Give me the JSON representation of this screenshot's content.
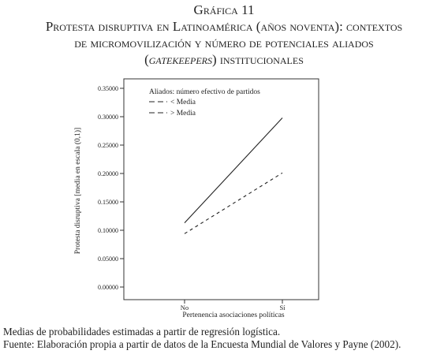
{
  "figure": {
    "number": "Gráfica 11",
    "title_line1": "Protesta disruptiva en Latinoamérica (años noventa): contextos",
    "title_line2": "de micromovilización y número de potenciales aliados",
    "title_line3_open": "(",
    "title_line3_italic": "gatekeepers",
    "title_line3_rest": ") institucionales"
  },
  "notes": {
    "line1": "Medias de probabilidades estimadas a partir de regresión logística.",
    "line2": "Fuente: Elaboración propia a partir de datos de la Encuesta Mundial de Valores y Payne (2002)."
  },
  "chart_data": {
    "type": "line",
    "categories": [
      "No",
      "Sí"
    ],
    "series": [
      {
        "name": "< Media",
        "values": [
          0.113,
          0.298
        ],
        "dash": "solid"
      },
      {
        "name": "> Media",
        "values": [
          0.094,
          0.201
        ],
        "dash": "dashed"
      }
    ],
    "ylabel": "Protesta disruptiva [media en escala (0,1)]",
    "xlabel": "Pertenencia asociaciones políticas",
    "ylim": [
      0.0,
      0.35
    ],
    "yticks": [
      "0.00000",
      "0.05000",
      "0.10000",
      "0.15000",
      "0.20000",
      "0.25000",
      "0.30000",
      "0.35000"
    ],
    "legend_title": "Aliados: número efectivo de partidos",
    "legend_position": "top-left",
    "grid": false
  }
}
